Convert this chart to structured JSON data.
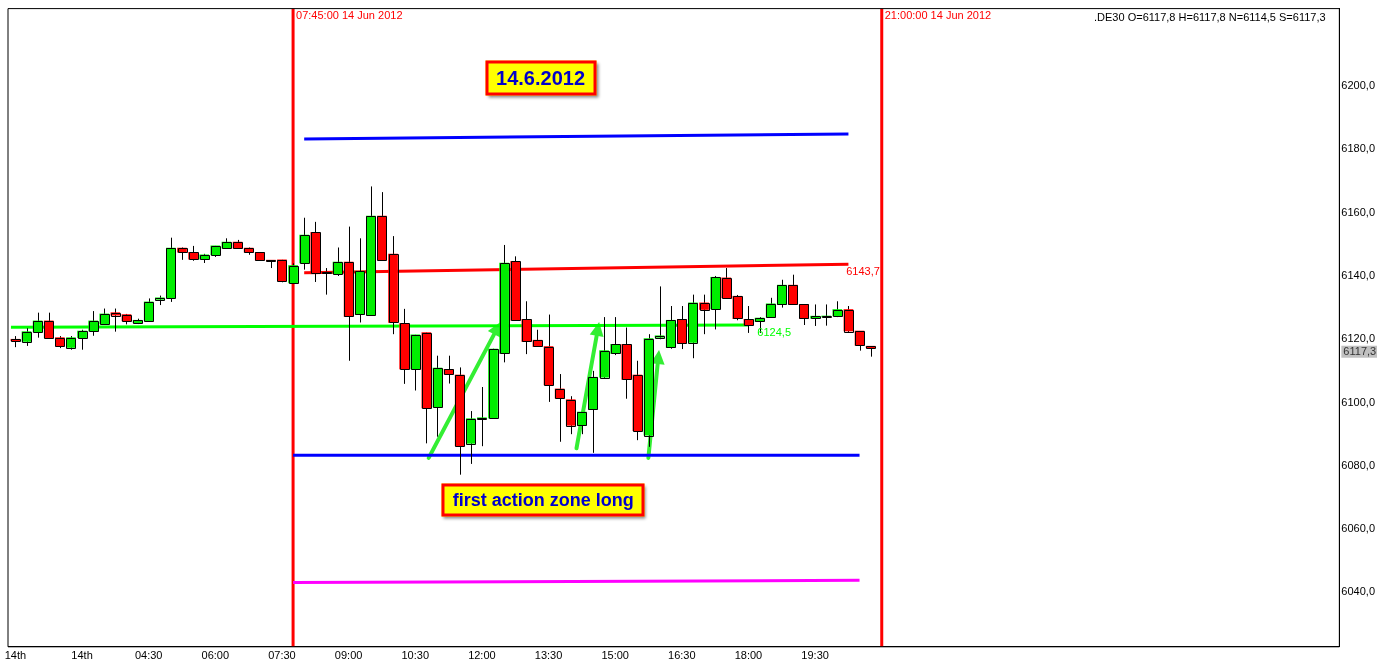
{
  "chart_data": {
    "type": "candlestick",
    "x": [
      "2012-06-14T01:30",
      "2012-06-14T01:45",
      "2012-06-14T02:00",
      "2012-06-14T02:15",
      "2012-06-14T02:30",
      "2012-06-14T02:45",
      "2012-06-14T03:00",
      "2012-06-14T03:15",
      "2012-06-14T03:30",
      "2012-06-14T03:45",
      "2012-06-14T04:00",
      "2012-06-14T04:15",
      "2012-06-14T04:30",
      "2012-06-14T04:45",
      "2012-06-14T05:00",
      "2012-06-14T05:15",
      "2012-06-14T05:30",
      "2012-06-14T05:45",
      "2012-06-14T06:00",
      "2012-06-14T06:15",
      "2012-06-14T06:30",
      "2012-06-14T06:45",
      "2012-06-14T07:00",
      "2012-06-14T07:15",
      "2012-06-14T07:30",
      "2012-06-14T07:45",
      "2012-06-14T08:00",
      "2012-06-14T08:15",
      "2012-06-14T08:30",
      "2012-06-14T08:45",
      "2012-06-14T09:00",
      "2012-06-14T09:15",
      "2012-06-14T09:30",
      "2012-06-14T09:45",
      "2012-06-14T10:00",
      "2012-06-14T10:15",
      "2012-06-14T10:30",
      "2012-06-14T10:45",
      "2012-06-14T11:00",
      "2012-06-14T11:15",
      "2012-06-14T11:30",
      "2012-06-14T11:45",
      "2012-06-14T12:00",
      "2012-06-14T12:15",
      "2012-06-14T12:30",
      "2012-06-14T12:45",
      "2012-06-14T13:00",
      "2012-06-14T13:15",
      "2012-06-14T13:30",
      "2012-06-14T13:45",
      "2012-06-14T14:00",
      "2012-06-14T14:15",
      "2012-06-14T14:30",
      "2012-06-14T14:45",
      "2012-06-14T15:00",
      "2012-06-14T15:15",
      "2012-06-14T15:30",
      "2012-06-14T15:45",
      "2012-06-14T16:00",
      "2012-06-14T16:15",
      "2012-06-14T16:30",
      "2012-06-14T16:45",
      "2012-06-14T17:00",
      "2012-06-14T17:15",
      "2012-06-14T17:30",
      "2012-06-14T17:45",
      "2012-06-14T18:00",
      "2012-06-14T18:15",
      "2012-06-14T18:30",
      "2012-06-14T18:45",
      "2012-06-14T19:00",
      "2012-06-14T19:15",
      "2012-06-14T19:30",
      "2012-06-14T19:45",
      "2012-06-14T20:00",
      "2012-06-14T20:15",
      "2012-06-14T20:30",
      "2012-06-14T20:45"
    ],
    "ohlc": [
      [
        6120,
        6121,
        6117.5,
        6119.5
      ],
      [
        6119.3,
        6123.5,
        6117.9,
        6122.4
      ],
      [
        6122.4,
        6128.4,
        6120.5,
        6125.8
      ],
      [
        6125.8,
        6128.4,
        6120.3,
        6120.5
      ],
      [
        6120.5,
        6121,
        6117.2,
        6117.9
      ],
      [
        6117.4,
        6121,
        6116.7,
        6120.5
      ],
      [
        6120.5,
        6123,
        6116.7,
        6122.6
      ],
      [
        6122.6,
        6128.9,
        6121.1,
        6125.8
      ],
      [
        6124.8,
        6129.7,
        6124.5,
        6128
      ],
      [
        6128.4,
        6129.7,
        6122.4,
        6127.6
      ],
      [
        6127.8,
        6128,
        6124.7,
        6125.8
      ],
      [
        6125.2,
        6126.5,
        6124.8,
        6126
      ],
      [
        6125.8,
        6132.9,
        6125.8,
        6131.8
      ],
      [
        6132.6,
        6133.8,
        6130.8,
        6133.1
      ],
      [
        6133.1,
        6152.1,
        6131.8,
        6148.8
      ],
      [
        6148.8,
        6149,
        6145.1,
        6147.5
      ],
      [
        6147.5,
        6149.5,
        6144.8,
        6145.3
      ],
      [
        6145.3,
        6147,
        6144.1,
        6146.7
      ],
      [
        6146.7,
        6149.5,
        6146,
        6149.5
      ],
      [
        6148.8,
        6151.9,
        6148.8,
        6150.7
      ],
      [
        6150.7,
        6151.4,
        6148.8,
        6148.8
      ],
      [
        6148.8,
        6149,
        6146.7,
        6147.5
      ],
      [
        6147.5,
        6147.5,
        6145,
        6145
      ],
      [
        6145,
        6145,
        6142.5,
        6144.8
      ],
      [
        6145.1,
        6145.1,
        6138,
        6138.5
      ],
      [
        6137.8,
        6144,
        6137.8,
        6143.3
      ],
      [
        6144.1,
        6158.4,
        6142,
        6152.9
      ],
      [
        6153.8,
        6157.1,
        6138.1,
        6140.7
      ],
      [
        6141.3,
        6142.5,
        6134.1,
        6140.9
      ],
      [
        6140.7,
        6149,
        6140,
        6144.4
      ],
      [
        6144.4,
        6155.6,
        6113.2,
        6127.2
      ],
      [
        6127.8,
        6151.9,
        6125.3,
        6141.5
      ],
      [
        6127.7,
        6168.3,
        6127.7,
        6158.9
      ],
      [
        6158.9,
        6166.5,
        6145.1,
        6145.1
      ],
      [
        6146.9,
        6152.6,
        6121.6,
        6125.3
      ],
      [
        6125,
        6129.6,
        6105.9,
        6110.6
      ],
      [
        6110.6,
        6121.4,
        6103.8,
        6121.4
      ],
      [
        6122.1,
        6122.1,
        6087.1,
        6098.3
      ],
      [
        6098.6,
        6114.8,
        6089.2,
        6110.9
      ],
      [
        6110.5,
        6114.8,
        6106,
        6109
      ],
      [
        6108.7,
        6111.1,
        6077.2,
        6086.3
      ],
      [
        6087.1,
        6097.3,
        6080.6,
        6094.9
      ],
      [
        6095,
        6104.9,
        6086.2,
        6095.2
      ],
      [
        6095.1,
        6117,
        6095,
        6116.9
      ],
      [
        6115.5,
        6149.8,
        6112.7,
        6144.1
      ],
      [
        6144.6,
        6146.2,
        6126,
        6126
      ],
      [
        6126.3,
        6132,
        6115.3,
        6119.3
      ],
      [
        6119.7,
        6123,
        6117.7,
        6117.7
      ],
      [
        6117.7,
        6127.8,
        6100.2,
        6105.6
      ],
      [
        6104.3,
        6109,
        6087.6,
        6101.4
      ],
      [
        6100.9,
        6102,
        6090,
        6092.8
      ],
      [
        6092.8,
        6097,
        6090,
        6097
      ],
      [
        6097.9,
        6110,
        6084.1,
        6108
      ],
      [
        6108,
        6127,
        6107.5,
        6116.4
      ],
      [
        6115.5,
        6127,
        6115,
        6118.4
      ],
      [
        6118.4,
        6123.7,
        6101.2,
        6107.3
      ],
      [
        6108.7,
        6113.2,
        6088.1,
        6091.1
      ],
      [
        6089.7,
        6121.6,
        6086,
        6120.2
      ],
      [
        6120.6,
        6136.7,
        6120,
        6121.1
      ],
      [
        6117.4,
        6130.5,
        6117,
        6126
      ],
      [
        6126.3,
        6130.5,
        6116.9,
        6118.7
      ],
      [
        6119,
        6134.1,
        6114,
        6131.5
      ],
      [
        6131.5,
        6134.1,
        6121.6,
        6129.4
      ],
      [
        6129.6,
        6140,
        6123.1,
        6139.6
      ],
      [
        6139.4,
        6142.5,
        6133,
        6133.1
      ],
      [
        6133.6,
        6134,
        6126,
        6126.5
      ],
      [
        6126.3,
        6130.5,
        6122,
        6124.5
      ],
      [
        6125.6,
        6127,
        6122,
        6126.7
      ],
      [
        6127,
        6133.1,
        6127,
        6131.2
      ],
      [
        6131,
        6138.8,
        6130,
        6137.1
      ],
      [
        6137.1,
        6140.4,
        6131,
        6131
      ],
      [
        6131,
        6131,
        6124.5,
        6126.6
      ],
      [
        6126.6,
        6131,
        6124.2,
        6127.3
      ],
      [
        6127.2,
        6131,
        6124.3,
        6127.2
      ],
      [
        6127.4,
        6132,
        6127,
        6129.4
      ],
      [
        6129.4,
        6130.5,
        6122,
        6122.6
      ],
      [
        6122.6,
        6122.6,
        6116.4,
        6118.1
      ],
      [
        6117.8,
        6117.8,
        6114.5,
        6117.3
      ]
    ],
    "colors": [
      "#ff0000",
      "#00ee00",
      "#00ee00",
      "#ff0000",
      "#ff0000",
      "#00ee00",
      "#00ee00",
      "#00ee00",
      "#00ee00",
      "#ff0000",
      "#ff0000",
      "#00ee00",
      "#00ee00",
      "#00ee00",
      "#00ee00",
      "#ff0000",
      "#ff0000",
      "#00ee00",
      "#00ee00",
      "#00ee00",
      "#ff0000",
      "#ff0000",
      "#ff0000",
      "#ff0000",
      "#ff0000",
      "#00ee00",
      "#00ee00",
      "#ff0000",
      "#ff0000",
      "#00ee00",
      "#ff0000",
      "#00ee00",
      "#00ee00",
      "#ff0000",
      "#ff0000",
      "#ff0000",
      "#00ee00",
      "#ff0000",
      "#00ee00",
      "#ff0000",
      "#ff0000",
      "#00ee00",
      "#00ee00",
      "#00ee00",
      "#00ee00",
      "#ff0000",
      "#ff0000",
      "#ff0000",
      "#ff0000",
      "#ff0000",
      "#ff0000",
      "#00ee00",
      "#00ee00",
      "#00ee00",
      "#00ee00",
      "#ff0000",
      "#ff0000",
      "#00ee00",
      "#00ee00",
      "#00ee00",
      "#ff0000",
      "#00ee00",
      "#ff0000",
      "#00ee00",
      "#ff0000",
      "#ff0000",
      "#ff0000",
      "#00ee00",
      "#00ee00",
      "#00ee00",
      "#ff0000",
      "#ff0000",
      "#00ee00",
      "#00ee00",
      "#00ee00",
      "#ff0000",
      "#ff0000",
      "#ff0000"
    ],
    "series": [
      {
        "type": "line",
        "color": "#0000ff",
        "x": [
          "2012-06-14T08:00",
          "2012-06-14T20:15"
        ],
        "values": [
          6183.3,
          6184.9
        ]
      },
      {
        "type": "line",
        "color": "#ff0000",
        "x": [
          "2012-06-14T08:00",
          "2012-06-14T20:15"
        ],
        "values": [
          6141,
          6143.7
        ]
      },
      {
        "type": "line",
        "color": "#00ff00",
        "x": [
          "2012-06-14T01:24",
          "2012-06-14T18:00"
        ],
        "values": [
          6123.8,
          6124.5
        ]
      },
      {
        "type": "line",
        "color": "#0000ff",
        "x": [
          "2012-06-14T07:45",
          "2012-06-14T20:30"
        ],
        "values": [
          6083.3,
          6083.3
        ]
      },
      {
        "type": "line",
        "color": "#ff00ff",
        "x": [
          "2012-06-14T07:45",
          "2012-06-14T20:30"
        ],
        "values": [
          6043.1,
          6043.8
        ]
      }
    ],
    "xlim": [
      "2012-06-14T01:20",
      "2012-06-15T07:18"
    ],
    "xticks": [
      {
        "value": "2012-06-14T01:30",
        "label": "14th"
      },
      {
        "value": "2012-06-14T03:00",
        "label": "14th"
      },
      {
        "value": "2012-06-14T04:30",
        "label": "04:30"
      },
      {
        "value": "2012-06-14T06:00",
        "label": "06:00"
      },
      {
        "value": "2012-06-14T07:30",
        "label": "07:30"
      },
      {
        "value": "2012-06-14T09:00",
        "label": "09:00"
      },
      {
        "value": "2012-06-14T10:30",
        "label": "10:30"
      },
      {
        "value": "2012-06-14T12:00",
        "label": "12:00"
      },
      {
        "value": "2012-06-14T13:30",
        "label": "13:30"
      },
      {
        "value": "2012-06-14T15:00",
        "label": "15:00"
      },
      {
        "value": "2012-06-14T16:30",
        "label": "16:30"
      },
      {
        "value": "2012-06-14T18:00",
        "label": "18:00"
      },
      {
        "value": "2012-06-14T19:30",
        "label": "19:30"
      }
    ],
    "ylim": [
      6022.8,
      6224.5
    ],
    "yticks": [
      {
        "value": 6040,
        "label": "6040,0"
      },
      {
        "value": 6060,
        "label": "6060,0"
      },
      {
        "value": 6080,
        "label": "6080,0"
      },
      {
        "value": 6100,
        "label": "6100,0"
      },
      {
        "value": 6120,
        "label": "6120,0"
      },
      {
        "value": 6140,
        "label": "6140,0"
      },
      {
        "value": 6160,
        "label": "6160,0"
      },
      {
        "value": 6180,
        "label": "6180,0"
      },
      {
        "value": 6200,
        "label": "6200,0"
      }
    ],
    "ref_lines": [
      {
        "axis": "x",
        "value": "2012-06-14T07:45",
        "label": "07:45:00 14 Jun 2012",
        "color": "#ff0000"
      },
      {
        "axis": "x",
        "value": "2012-06-14T21:00",
        "label": "21:00:00 14 Jun 2012",
        "color": "#ff0000"
      }
    ],
    "annotations": [
      "14.6.2012",
      "first action zone long",
      ".DE30 O=6117,8 H=6117,8 N=6114,5 S=6117,3",
      {
        "text": "6143,7",
        "x": "2012-06-14T20:12",
        "y": 6143.7
      },
      {
        "text": "6124,5",
        "x": "2012-06-14T18:12",
        "y": 6124.5
      },
      "6117,3"
    ],
    "grid": false,
    "legend": false
  }
}
